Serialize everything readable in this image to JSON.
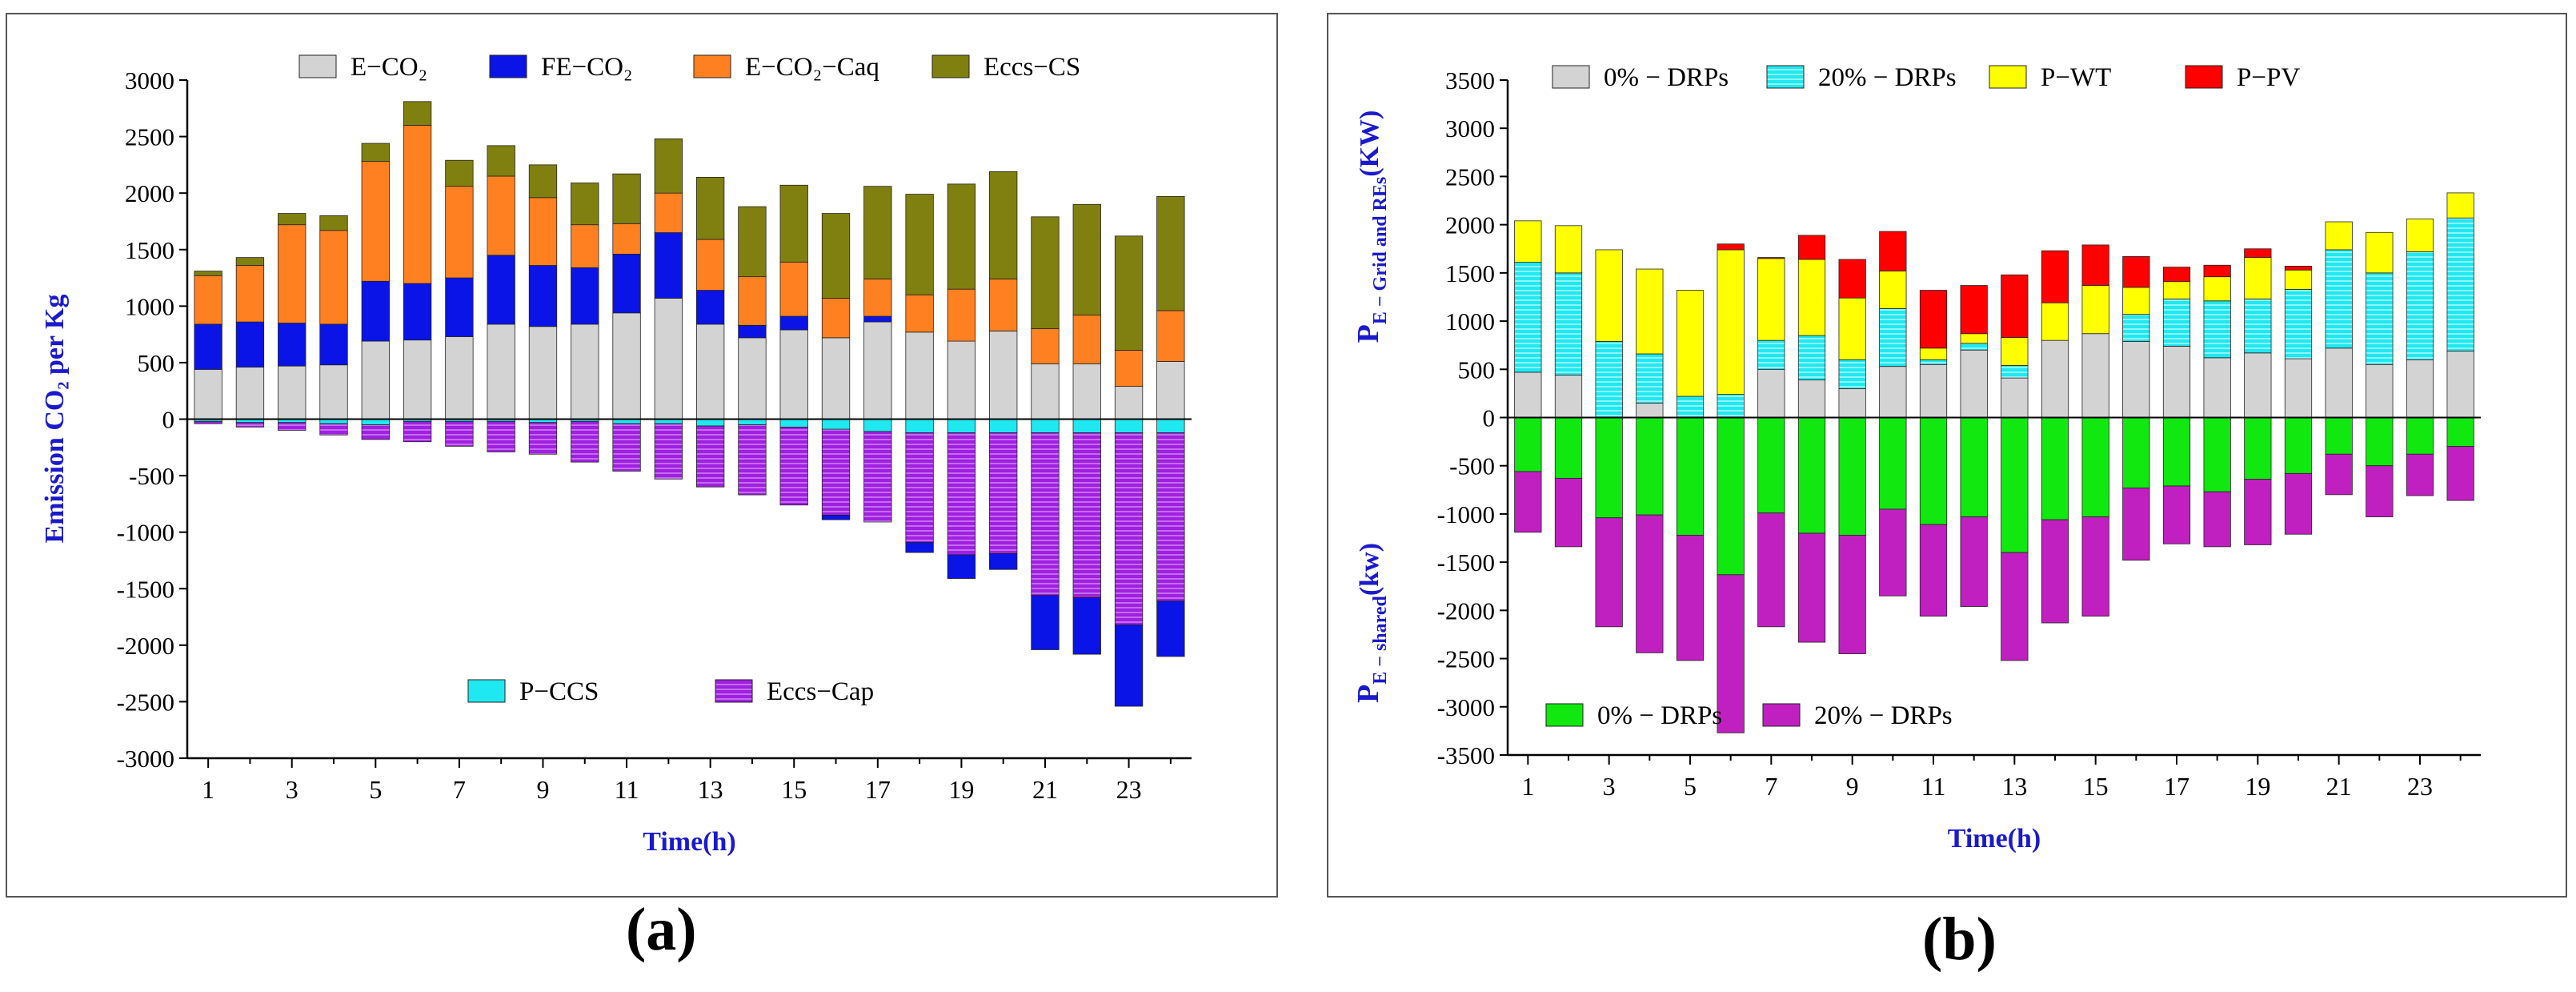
{
  "panel_labels": {
    "a": "(a)",
    "b": "(b)"
  },
  "chart_data": [
    {
      "id": "a",
      "type": "bar",
      "stacked": true,
      "xlabel": "Time(h)",
      "ylabel": "Emission CO₂ per Kg",
      "ylim": [
        -3000,
        3000
      ],
      "yticks": [
        -3000,
        -2500,
        -2000,
        -1500,
        -1000,
        -500,
        0,
        500,
        1000,
        1500,
        2000,
        2500,
        3000
      ],
      "xtick_labels": [
        "1",
        "3",
        "5",
        "7",
        "9",
        "11",
        "13",
        "15",
        "17",
        "19",
        "21",
        "23"
      ],
      "categories": [
        1,
        2,
        3,
        4,
        5,
        6,
        7,
        8,
        9,
        10,
        11,
        12,
        13,
        14,
        15,
        16,
        17,
        18,
        19,
        20,
        21,
        22,
        23,
        24
      ],
      "legend_top": [
        {
          "key": "e_co2",
          "label": "E−CO₂",
          "color": "#d3d3d3"
        },
        {
          "key": "fe_co2",
          "label": "FE−CO₂",
          "color": "#0a14e6"
        },
        {
          "key": "e_co2_caq",
          "label": "E−CO₂−Caq",
          "color": "#ff8020"
        },
        {
          "key": "eccs_cs",
          "label": "Eccs−CS",
          "color": "#808010"
        }
      ],
      "legend_bottom": [
        {
          "key": "p_ccs",
          "label": "P−CCS",
          "color": "#20e8f0"
        },
        {
          "key": "eccs_cap",
          "label": "Eccs−Cap",
          "color": "#a020e0"
        }
      ],
      "series": [
        {
          "name": "E−CO₂",
          "key": "e_co2",
          "color": "#d3d3d3",
          "side": "positive",
          "values": [
            440,
            460,
            470,
            480,
            690,
            700,
            730,
            840,
            820,
            840,
            940,
            1070,
            840,
            720,
            790,
            720,
            860,
            770,
            690,
            780,
            490,
            490,
            290,
            510
          ]
        },
        {
          "name": "FE−CO₂",
          "key": "fe_co2",
          "color": "#0a14e6",
          "side": "positive",
          "values": [
            400,
            400,
            380,
            360,
            530,
            500,
            520,
            610,
            540,
            500,
            520,
            580,
            300,
            110,
            120,
            0,
            50,
            0,
            0,
            0,
            0,
            0,
            0,
            0
          ]
        },
        {
          "name": "E−CO₂−Caq",
          "key": "e_co2_caq",
          "color": "#ff8020",
          "side": "positive",
          "values": [
            430,
            500,
            870,
            830,
            1060,
            1400,
            810,
            700,
            600,
            380,
            270,
            350,
            450,
            430,
            480,
            350,
            330,
            330,
            460,
            460,
            310,
            430,
            320,
            450
          ]
        },
        {
          "name": "Eccs−CS",
          "key": "eccs_cs",
          "color": "#808010",
          "side": "positive",
          "values": [
            40,
            70,
            100,
            130,
            160,
            210,
            230,
            270,
            290,
            370,
            440,
            480,
            550,
            620,
            680,
            750,
            820,
            890,
            930,
            950,
            990,
            980,
            1010,
            1010
          ]
        },
        {
          "name": "P−CCS",
          "key": "p_ccs",
          "color": "#20e8f0",
          "side": "negative",
          "values": [
            -20,
            -30,
            -30,
            -40,
            -50,
            -20,
            -20,
            -20,
            -30,
            -20,
            -40,
            -40,
            -60,
            -50,
            -70,
            -90,
            -110,
            -120,
            -120,
            -120,
            -120,
            -120,
            -120,
            -120
          ]
        },
        {
          "name": "Eccs−Cap",
          "key": "eccs_cap",
          "color": "#a020e0",
          "side": "negative",
          "values": [
            -20,
            -40,
            -70,
            -100,
            -130,
            -180,
            -220,
            -270,
            -280,
            -360,
            -420,
            -490,
            -540,
            -620,
            -690,
            -760,
            -800,
            -970,
            -1080,
            -1070,
            -1440,
            -1460,
            -1700,
            -1490
          ]
        },
        {
          "name": "FE−CO₂ (negative)",
          "key": "fe_co2_neg",
          "color": "#0a14e6",
          "side": "negative",
          "values": [
            0,
            0,
            0,
            0,
            0,
            0,
            0,
            0,
            0,
            0,
            0,
            0,
            0,
            0,
            0,
            -40,
            0,
            -90,
            -210,
            -140,
            -480,
            -500,
            -720,
            -490
          ]
        }
      ]
    },
    {
      "id": "b",
      "type": "bar",
      "stacked": true,
      "xlabel": "Time(h)",
      "ylabel_top": "P",
      "ylabel_top_sub": "E − Grid and REs",
      "ylabel_top_unit": "(KW)",
      "ylabel_bottom": "P",
      "ylabel_bottom_sub": "E − shared",
      "ylabel_bottom_unit": "(kw)",
      "ylim": [
        -3500,
        3500
      ],
      "yticks": [
        -3500,
        -3000,
        -2500,
        -2000,
        -1500,
        -1000,
        -500,
        0,
        500,
        1000,
        1500,
        2000,
        2500,
        3000,
        3500
      ],
      "xtick_labels": [
        "1",
        "3",
        "5",
        "7",
        "9",
        "11",
        "13",
        "15",
        "17",
        "19",
        "21",
        "23"
      ],
      "categories": [
        1,
        2,
        3,
        4,
        5,
        6,
        7,
        8,
        9,
        10,
        11,
        12,
        13,
        14,
        15,
        16,
        17,
        18,
        19,
        20,
        21,
        22,
        23,
        24
      ],
      "legend_top": [
        {
          "key": "drp0",
          "label": "0% − DRPs",
          "color": "#d3d3d3"
        },
        {
          "key": "drp20",
          "label": "20% − DRPs",
          "color": "#20e8f0"
        },
        {
          "key": "pwt",
          "label": "P−WT",
          "color": "#ffff00"
        },
        {
          "key": "ppv",
          "label": "P−PV",
          "color": "#ff0000"
        }
      ],
      "legend_bottom": [
        {
          "key": "sh0",
          "label": "0% − DRPs",
          "color": "#10e810"
        },
        {
          "key": "sh20",
          "label": "20% − DRPs",
          "color": "#c020c0"
        }
      ],
      "series": [
        {
          "name": "0% − DRPs",
          "key": "drp0",
          "color": "#d3d3d3",
          "side": "positive",
          "values": [
            470,
            440,
            0,
            150,
            0,
            0,
            500,
            390,
            300,
            530,
            550,
            700,
            410,
            800,
            870,
            790,
            740,
            620,
            670,
            610,
            720,
            550,
            600,
            690
          ]
        },
        {
          "name": "20% − DRPs",
          "key": "drp20",
          "color": "#20e8f0",
          "side": "positive",
          "values": [
            1140,
            1060,
            790,
            510,
            220,
            240,
            300,
            460,
            300,
            600,
            50,
            70,
            130,
            0,
            0,
            280,
            490,
            590,
            560,
            720,
            1020,
            950,
            1120,
            1380
          ]
        },
        {
          "name": "P−WT",
          "key": "pwt",
          "color": "#ffff00",
          "side": "positive",
          "values": [
            430,
            490,
            950,
            880,
            1100,
            1500,
            850,
            790,
            640,
            390,
            120,
            100,
            290,
            390,
            500,
            280,
            180,
            250,
            430,
            200,
            290,
            420,
            340,
            260
          ]
        },
        {
          "name": "P−PV",
          "key": "ppv",
          "color": "#ff0000",
          "side": "positive",
          "values": [
            0,
            0,
            0,
            0,
            0,
            60,
            10,
            250,
            400,
            410,
            600,
            500,
            650,
            540,
            420,
            320,
            150,
            120,
            90,
            40,
            0,
            0,
            0,
            0
          ]
        },
        {
          "name": "0% − DRPs (shared)",
          "key": "sh0",
          "color": "#10e810",
          "side": "negative",
          "values": [
            -560,
            -630,
            -1040,
            -1010,
            -1220,
            -1630,
            -990,
            -1200,
            -1220,
            -950,
            -1110,
            -1030,
            -1400,
            -1060,
            -1030,
            -730,
            -710,
            -770,
            -640,
            -580,
            -380,
            -500,
            -380,
            -300
          ]
        },
        {
          "name": "20% − DRPs (shared)",
          "key": "sh20",
          "color": "#c020c0",
          "side": "negative",
          "values": [
            -630,
            -710,
            -1130,
            -1430,
            -1300,
            -1640,
            -1180,
            -1130,
            -1230,
            -900,
            -950,
            -930,
            -1120,
            -1070,
            -1030,
            -750,
            -600,
            -570,
            -680,
            -630,
            -420,
            -530,
            -430,
            -560
          ]
        }
      ]
    }
  ]
}
